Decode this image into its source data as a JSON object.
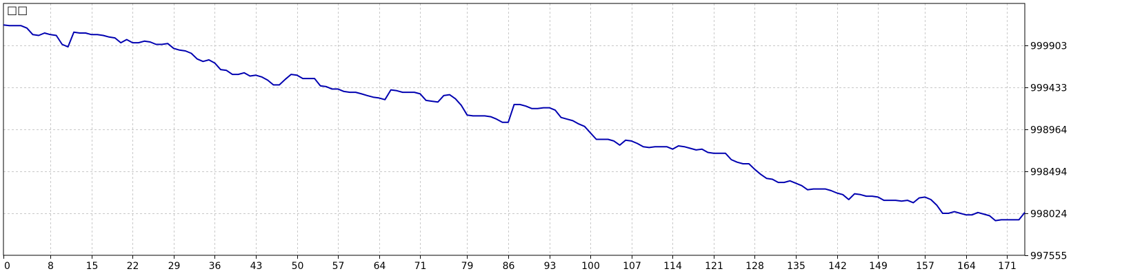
{
  "title": "□□",
  "colors": {
    "line": "#0000b0",
    "grid": "#c8c8c8",
    "axis": "#000000",
    "background": "#ffffff"
  },
  "chart_data": {
    "type": "line",
    "title": "□□",
    "xlabel": "",
    "ylabel": "",
    "xlim": [
      0,
      174
    ],
    "ylim": [
      997555,
      1000373
    ],
    "grid": true,
    "legend": "none",
    "x_ticks": [
      0,
      8,
      15,
      22,
      29,
      36,
      43,
      50,
      57,
      64,
      71,
      79,
      86,
      93,
      100,
      107,
      114,
      121,
      128,
      135,
      142,
      149,
      157,
      164,
      171
    ],
    "y_ticks": [
      997555,
      998024,
      998494,
      998964,
      999433,
      999903
    ],
    "series": [
      {
        "x": [
          0,
          1,
          2,
          3,
          4,
          5,
          6,
          7,
          8,
          9,
          10,
          11,
          12,
          13,
          14,
          15,
          16,
          17,
          18,
          19,
          20,
          21,
          22,
          23,
          24,
          25,
          26,
          27,
          28,
          29,
          30,
          31,
          32,
          33,
          34,
          35,
          36,
          37,
          38,
          39,
          40,
          41,
          42,
          43,
          44,
          45,
          46,
          47,
          48,
          49,
          50,
          51,
          52,
          53,
          54,
          55,
          56,
          57,
          58,
          59,
          60,
          61,
          62,
          63,
          64,
          65,
          66,
          67,
          68,
          69,
          70,
          71,
          72,
          73,
          74,
          75,
          76,
          77,
          78,
          79,
          80,
          81,
          82,
          83,
          84,
          85,
          86,
          87,
          88,
          89,
          90,
          91,
          92,
          93,
          94,
          95,
          96,
          97,
          98,
          99,
          100,
          101,
          102,
          103,
          104,
          105,
          106,
          107,
          108,
          109,
          110,
          111,
          112,
          113,
          114,
          115,
          116,
          117,
          118,
          119,
          120,
          121,
          122,
          123,
          124,
          125,
          126,
          127,
          128,
          129,
          130,
          131,
          132,
          133,
          134,
          135,
          136,
          137,
          138,
          139,
          140,
          141,
          142,
          143,
          144,
          145,
          146,
          147,
          148,
          149,
          150,
          151,
          152,
          153,
          154,
          155,
          156,
          157,
          158,
          159,
          160,
          161,
          162,
          163,
          164,
          165,
          166,
          167,
          168,
          169,
          170,
          171,
          172,
          173,
          174
        ],
        "values": [
          1000133,
          1000124,
          1000124,
          1000124,
          1000097,
          1000024,
          1000015,
          1000042,
          1000024,
          1000015,
          999915,
          999887,
          1000051,
          1000042,
          1000042,
          1000024,
          1000024,
          1000015,
          999997,
          999987,
          999933,
          999969,
          999933,
          999933,
          999951,
          999942,
          999915,
          999915,
          999924,
          999870,
          999851,
          999842,
          999815,
          999752,
          999724,
          999742,
          999706,
          999633,
          999624,
          999579,
          999579,
          999597,
          999561,
          999570,
          999551,
          999515,
          999461,
          999461,
          999524,
          999579,
          999570,
          999533,
          999533,
          999533,
          999451,
          999442,
          999415,
          999415,
          999388,
          999379,
          999379,
          999361,
          999342,
          999324,
          999315,
          999297,
          999406,
          999397,
          999379,
          999379,
          999379,
          999361,
          999288,
          999279,
          999270,
          999342,
          999352,
          999306,
          999233,
          999124,
          999115,
          999115,
          999115,
          999106,
          999079,
          999043,
          999043,
          999242,
          999242,
          999224,
          999197,
          999197,
          999206,
          999206,
          999179,
          999097,
          999079,
          999061,
          999025,
          998997,
          998925,
          998852,
          998852,
          998852,
          998834,
          998788,
          998843,
          998834,
          998806,
          998770,
          998761,
          998770,
          998770,
          998770,
          998743,
          998779,
          998770,
          998752,
          998734,
          998743,
          998706,
          998697,
          998697,
          998697,
          998625,
          998597,
          998579,
          998579,
          998516,
          998461,
          998416,
          998406,
          998370,
          998370,
          998388,
          998361,
          998334,
          998288,
          998297,
          998297,
          998297,
          998279,
          998252,
          998234,
          998179,
          998243,
          998234,
          998216,
          998216,
          998206,
          998170,
          998170,
          998170,
          998161,
          998170,
          998143,
          998197,
          998206,
          998179,
          998116,
          998025,
          998025,
          998043,
          998025,
          998007,
          998007,
          998034,
          998016,
          997998,
          997943,
          997952,
          997952,
          997952,
          997952,
          998034
        ]
      }
    ]
  }
}
